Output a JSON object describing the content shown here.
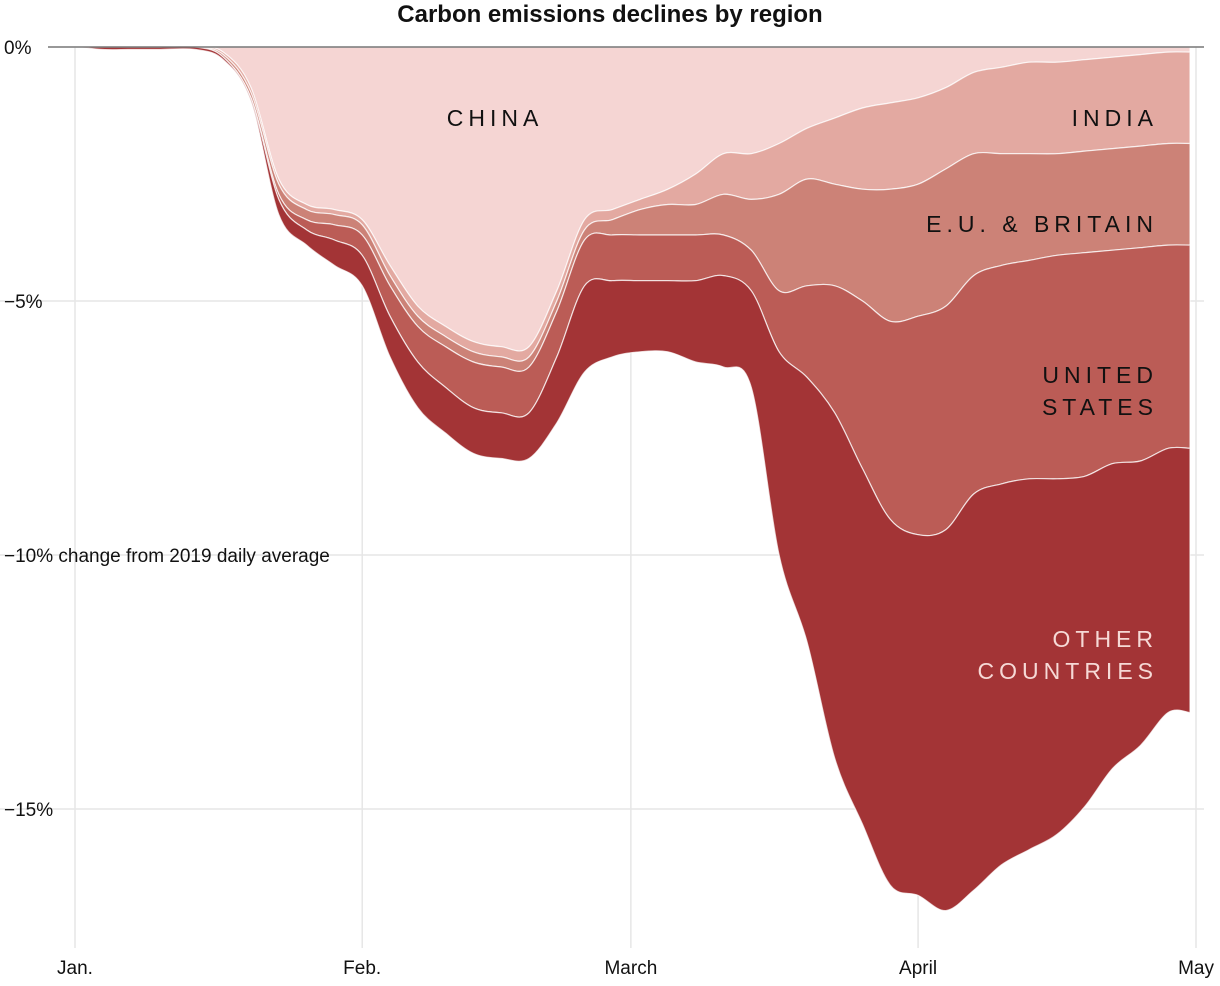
{
  "chart_data": {
    "type": "area",
    "stacked": true,
    "title": "Carbon emissions declines by region",
    "ylabel": "change from 2019 daily average",
    "ylim": [
      -17.5,
      0
    ],
    "y_ticks": [
      {
        "value": 0,
        "label": "0%"
      },
      {
        "value": -5,
        "label": "−5%"
      },
      {
        "value": -10,
        "label": "−10% change from 2019 daily average"
      },
      {
        "value": -15,
        "label": "−15%"
      }
    ],
    "x_ticks": [
      {
        "day": 0,
        "label": "Jan."
      },
      {
        "day": 31,
        "label": "Feb."
      },
      {
        "day": 60,
        "label": "March"
      },
      {
        "day": 91,
        "label": "April"
      },
      {
        "day": 121,
        "label": "May"
      }
    ],
    "x": [
      -3,
      0,
      3,
      6,
      9,
      13,
      16,
      19,
      22,
      25,
      28,
      31,
      34,
      37,
      40,
      43,
      46,
      49,
      52,
      55,
      58,
      61,
      64,
      67,
      70,
      73,
      76,
      79,
      82,
      85,
      88,
      91,
      94,
      97,
      100,
      103,
      106,
      109,
      112,
      115,
      118,
      121
    ],
    "series": [
      {
        "name": "CHINA",
        "label": "CHINA",
        "color": "#f5d5d3",
        "values": [
          0,
          0,
          0,
          0,
          0,
          0,
          -0.1,
          -0.8,
          -2.6,
          -3.1,
          -3.2,
          -3.4,
          -4.3,
          -5.1,
          -5.5,
          -5.8,
          -5.9,
          -5.9,
          -4.8,
          -3.4,
          -3.2,
          -3.0,
          -2.8,
          -2.5,
          -2.1,
          -2.1,
          -1.9,
          -1.6,
          -1.4,
          -1.2,
          -1.1,
          -1.0,
          -0.8,
          -0.5,
          -0.4,
          -0.3,
          -0.3,
          -0.25,
          -0.2,
          -0.15,
          -0.1,
          -0.1
        ]
      },
      {
        "name": "INDIA",
        "label": "INDIA",
        "color": "#e3a9a1",
        "values": [
          0,
          0,
          0,
          0,
          0,
          0,
          -0.05,
          -0.1,
          -0.1,
          -0.1,
          -0.1,
          -0.1,
          -0.2,
          -0.2,
          -0.2,
          -0.2,
          -0.2,
          -0.2,
          -0.2,
          -0.2,
          -0.2,
          -0.2,
          -0.3,
          -0.6,
          -0.8,
          -0.9,
          -1.0,
          -1.0,
          -1.3,
          -1.6,
          -1.7,
          -1.7,
          -1.6,
          -1.6,
          -1.7,
          -1.8,
          -1.8,
          -1.8,
          -1.8,
          -1.8,
          -1.8,
          -1.8
        ]
      },
      {
        "name": "E.U. & BRITAIN",
        "label": "E.U. & BRITAIN",
        "color": "#cc8277",
        "values": [
          0,
          0,
          0,
          0,
          0,
          0,
          -0.05,
          -0.1,
          -0.2,
          -0.2,
          -0.2,
          -0.2,
          -0.2,
          -0.2,
          -0.2,
          -0.2,
          -0.2,
          -0.2,
          -0.2,
          -0.2,
          -0.3,
          -0.5,
          -0.6,
          -0.6,
          -0.8,
          -1.0,
          -1.9,
          -2.1,
          -2.0,
          -2.2,
          -2.6,
          -2.6,
          -2.7,
          -2.4,
          -2.2,
          -2.1,
          -2.0,
          -2.0,
          -2.0,
          -2.0,
          -2.0,
          -2.0
        ]
      },
      {
        "name": "UNITED STATES",
        "label": [
          "UNITED",
          "STATES"
        ],
        "color": "#bb5c56",
        "values": [
          0,
          0,
          0,
          0,
          0,
          0,
          0,
          -0.02,
          -0.1,
          -0.2,
          -0.3,
          -0.4,
          -0.6,
          -0.7,
          -0.8,
          -0.9,
          -0.9,
          -0.9,
          -0.9,
          -0.9,
          -0.9,
          -0.9,
          -0.9,
          -0.9,
          -0.8,
          -0.8,
          -1.2,
          -1.8,
          -2.5,
          -3.3,
          -3.9,
          -4.3,
          -4.4,
          -4.3,
          -4.3,
          -4.3,
          -4.4,
          -4.4,
          -4.2,
          -4.2,
          -4.0,
          -4.0
        ]
      },
      {
        "name": "OTHER COUNTRIES",
        "label": [
          "OTHER",
          "COUNTRIES"
        ],
        "color": "#a33436",
        "values": [
          0,
          0,
          -0.05,
          -0.05,
          -0.05,
          -0.05,
          -0.05,
          -0.05,
          -0.3,
          -0.3,
          -0.5,
          -0.6,
          -0.8,
          -0.9,
          -0.9,
          -0.9,
          -0.9,
          -0.9,
          -1.3,
          -1.7,
          -1.5,
          -1.4,
          -1.4,
          -1.6,
          -1.8,
          -1.9,
          -4.0,
          -5.2,
          -6.8,
          -7.0,
          -7.2,
          -7.1,
          -7.5,
          -7.8,
          -7.5,
          -7.3,
          -7.0,
          -6.5,
          -6.0,
          -5.6,
          -5.2,
          -5.2
        ]
      }
    ]
  }
}
